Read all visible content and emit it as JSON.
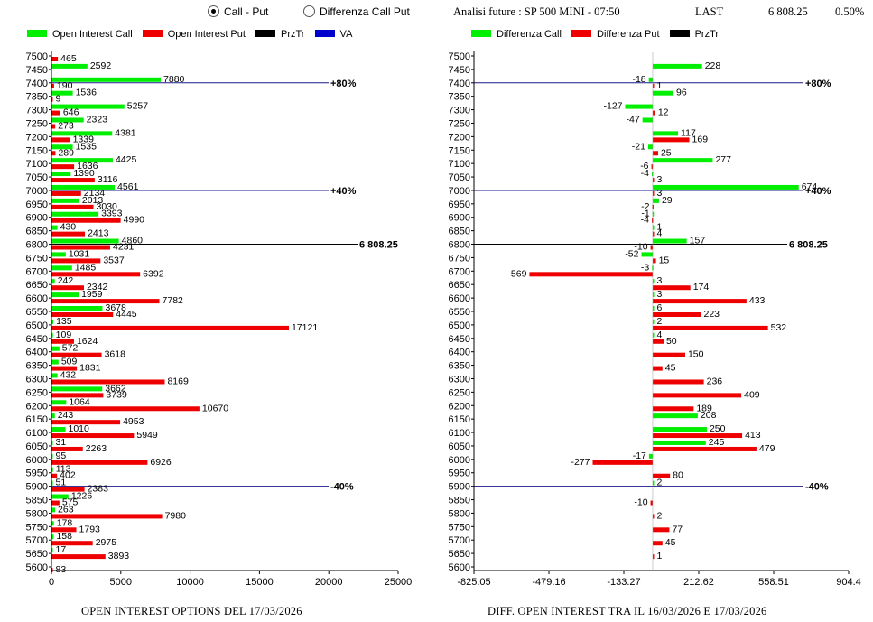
{
  "controls": {
    "radio_call_put": "Call - Put",
    "radio_diff": "Differenza Call Put",
    "selected": "call_put"
  },
  "header": {
    "title": "Analisi future : SP 500 MINI - 07:50",
    "last_label": "LAST",
    "last_value": "6 808.25",
    "change": "0.50%"
  },
  "colors": {
    "call": "#00ee00",
    "put": "#ee0000",
    "line": "#000000",
    "va": "#0000cc",
    "pct_line": "#1a1a8c"
  },
  "chart_data": [
    {
      "type": "bar",
      "orientation": "horizontal",
      "footer": "OPEN INTEREST OPTIONS DEL 17/03/2026",
      "legend": [
        "Open Interest Call",
        "Open Interest Put",
        "PrzTr",
        "VA"
      ],
      "strikes": [
        7500,
        7450,
        7400,
        7350,
        7300,
        7250,
        7200,
        7150,
        7100,
        7050,
        7000,
        6950,
        6900,
        6850,
        6800,
        6750,
        6700,
        6650,
        6600,
        6550,
        6500,
        6450,
        6400,
        6350,
        6300,
        6250,
        6200,
        6150,
        6100,
        6050,
        6000,
        5950,
        5900,
        5850,
        5800,
        5750,
        5700,
        5650,
        5600
      ],
      "series": [
        {
          "name": "Open Interest Call",
          "values": [
            0,
            2592,
            7880,
            1536,
            5257,
            2323,
            4381,
            1535,
            4425,
            1390,
            4561,
            2013,
            3393,
            430,
            4860,
            1031,
            1485,
            242,
            1959,
            3678,
            135,
            109,
            572,
            509,
            432,
            3662,
            1064,
            243,
            1010,
            31,
            95,
            113,
            51,
            1226,
            263,
            178,
            158,
            17,
            0
          ]
        },
        {
          "name": "Open Interest Put",
          "values": [
            465,
            0,
            190,
            9,
            646,
            273,
            1339,
            289,
            1636,
            3116,
            2134,
            3030,
            4990,
            2413,
            4231,
            3537,
            6392,
            2342,
            7782,
            4445,
            17121,
            1624,
            3618,
            1831,
            8169,
            3739,
            10670,
            4953,
            5949,
            2263,
            6926,
            402,
            2383,
            575,
            7980,
            1793,
            2975,
            3893,
            83
          ]
        }
      ],
      "reference_lines": [
        {
          "strike": 7400,
          "label": "+80%"
        },
        {
          "strike": 7000,
          "label": "+40%"
        },
        {
          "strike": 6800,
          "label": "6 808.25"
        },
        {
          "strike": 5900,
          "label": "-40%"
        }
      ],
      "xlim": [
        0,
        25000
      ],
      "xticks": [
        "0",
        "5000",
        "10000",
        "15000",
        "20000",
        "25000"
      ],
      "grid": false
    },
    {
      "type": "bar",
      "orientation": "horizontal",
      "footer": "DIFF. OPEN INTEREST TRA IL 16/03/2026 E 17/03/2026",
      "legend": [
        "Differenza Call",
        "Differenza Put",
        "PrzTr"
      ],
      "strikes": [
        7500,
        7450,
        7400,
        7350,
        7300,
        7250,
        7200,
        7150,
        7100,
        7050,
        7000,
        6950,
        6900,
        6850,
        6800,
        6750,
        6700,
        6650,
        6600,
        6550,
        6500,
        6450,
        6400,
        6350,
        6300,
        6250,
        6200,
        6150,
        6100,
        6050,
        6000,
        5950,
        5900,
        5850,
        5800,
        5750,
        5700,
        5650,
        5600
      ],
      "series": [
        {
          "name": "Differenza Call",
          "values": [
            0,
            228,
            -18,
            96,
            -127,
            -47,
            117,
            -21,
            277,
            -4,
            674,
            29,
            -1,
            1,
            157,
            -52,
            -3,
            3,
            3,
            6,
            2,
            4,
            0,
            0,
            0,
            0,
            0,
            208,
            250,
            245,
            -17,
            0,
            2,
            0,
            0,
            0,
            0,
            0,
            0
          ]
        },
        {
          "name": "Differenza Put",
          "values": [
            0,
            0,
            1,
            0,
            12,
            0,
            169,
            25,
            -6,
            3,
            3,
            -2,
            -4,
            4,
            -10,
            15,
            -569,
            174,
            433,
            223,
            532,
            50,
            150,
            45,
            236,
            409,
            189,
            0,
            413,
            479,
            -277,
            80,
            0,
            -10,
            2,
            77,
            45,
            1,
            0
          ]
        }
      ],
      "reference_lines": [
        {
          "strike": 7400,
          "label": "+80%"
        },
        {
          "strike": 7000,
          "label": "+40%"
        },
        {
          "strike": 6800,
          "label": "6 808.25"
        },
        {
          "strike": 5900,
          "label": "-40%"
        }
      ],
      "xlim": [
        -825.05,
        904.4
      ],
      "xticks": [
        "-825.05",
        "-479.16",
        "-133.27",
        "212.62",
        "558.51",
        "904.4"
      ],
      "grid": false
    }
  ]
}
